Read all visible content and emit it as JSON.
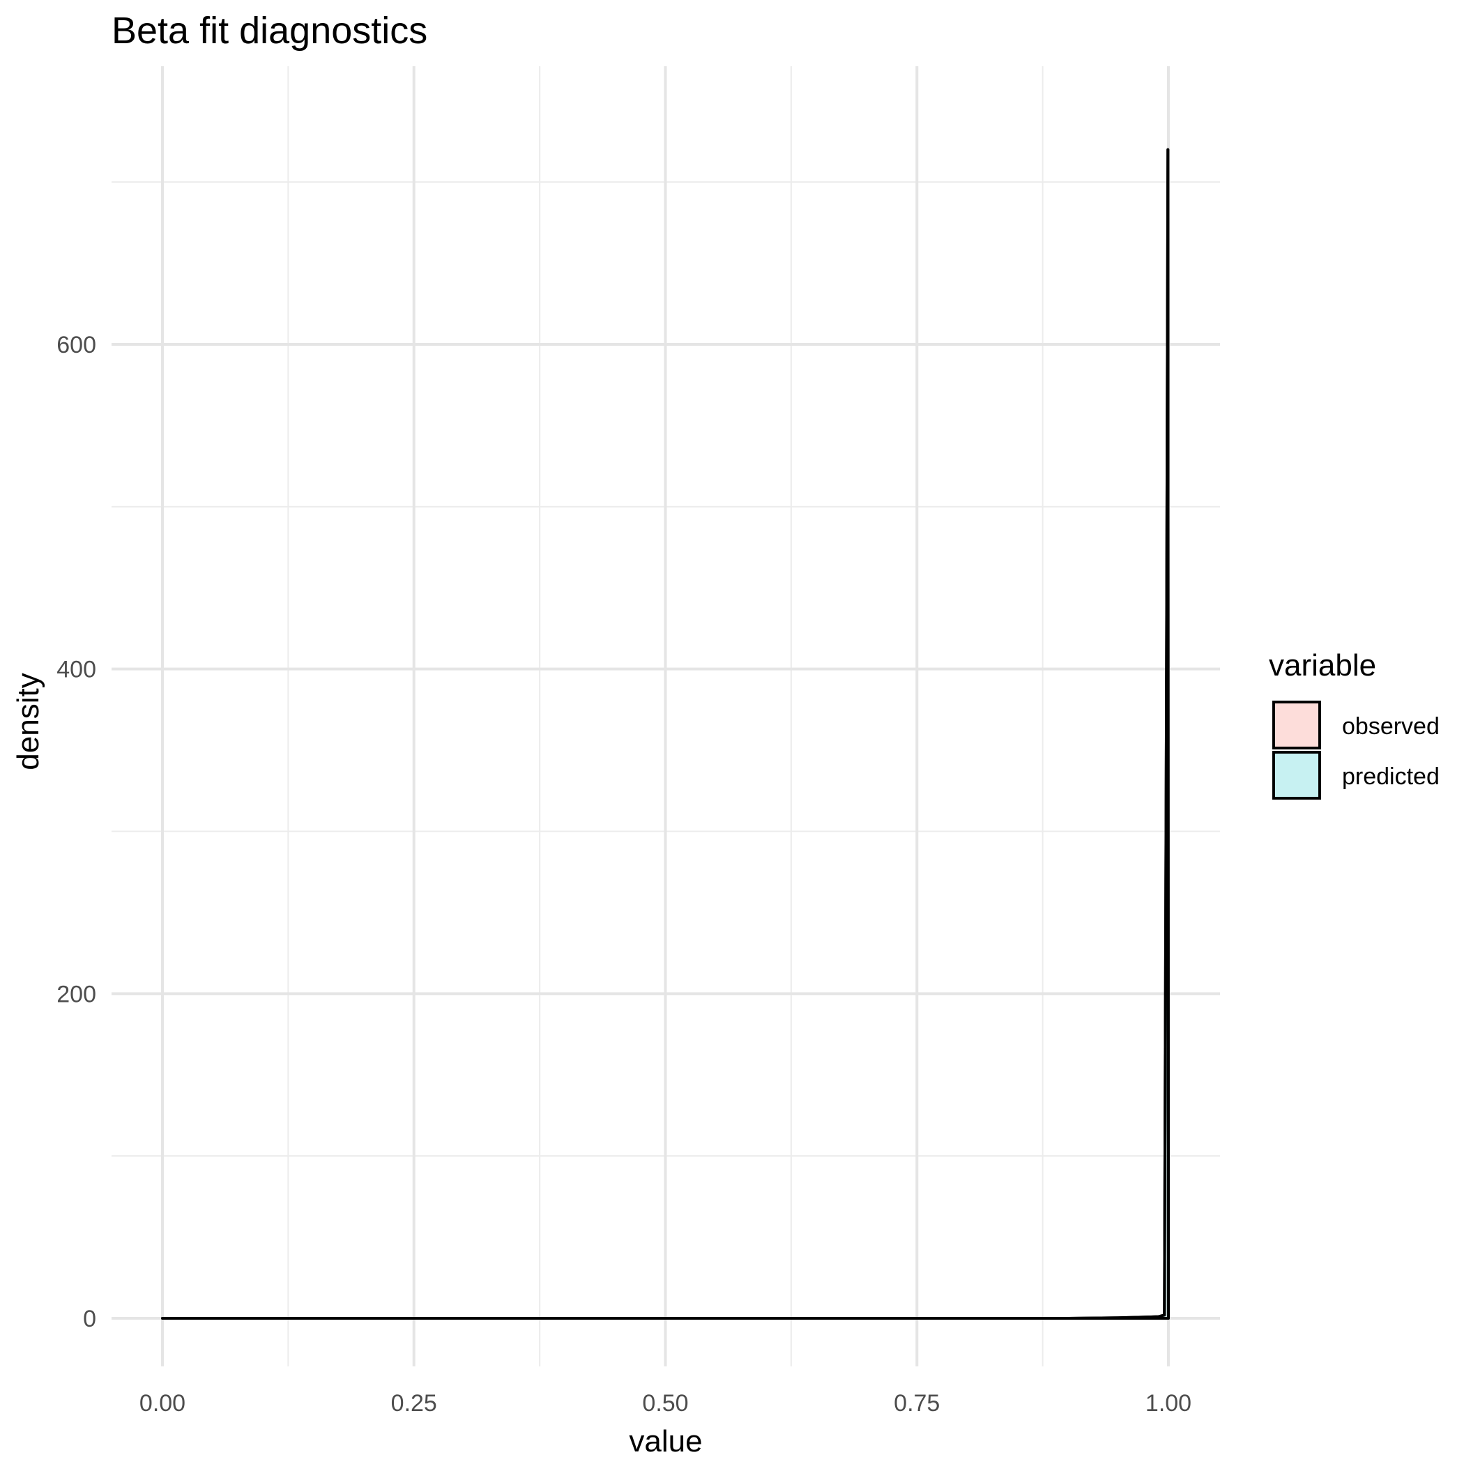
{
  "chart_data": {
    "type": "area",
    "title": "Beta fit diagnostics",
    "xlabel": "value",
    "ylabel": "density",
    "xlim": [
      -0.1,
      2.1
    ],
    "ylim": [
      -40,
      740
    ],
    "x_ticks": [
      0.0,
      0.25,
      0.5,
      0.75,
      1.0
    ],
    "x_tick_labels": [
      "0.00",
      "0.25",
      "0.50",
      "0.75",
      "1.00"
    ],
    "y_ticks": [
      0,
      200,
      400,
      600
    ],
    "y_tick_labels": [
      "0",
      "200",
      "400",
      "600"
    ],
    "grid": true,
    "legend": {
      "title": "variable",
      "position": "right",
      "entries": [
        "observed",
        "predicted"
      ]
    },
    "series": [
      {
        "name": "observed",
        "fill": "#F8766D",
        "fill_opacity": 0.25,
        "x": [
          0.0,
          0.5,
          0.9,
          0.95,
          0.99,
          0.996,
          0.998,
          0.9995,
          1.0
        ],
        "y": [
          0,
          0,
          0,
          0.3,
          1,
          2,
          380,
          720,
          0
        ]
      },
      {
        "name": "predicted",
        "fill": "#00BFC4",
        "fill_opacity": 0.22,
        "x": [
          0.0,
          0.5,
          0.9,
          0.95,
          0.99,
          0.996,
          0.998,
          0.9995,
          1.0
        ],
        "y": [
          0,
          0,
          0,
          0.3,
          1,
          2,
          370,
          720,
          0
        ]
      }
    ]
  }
}
